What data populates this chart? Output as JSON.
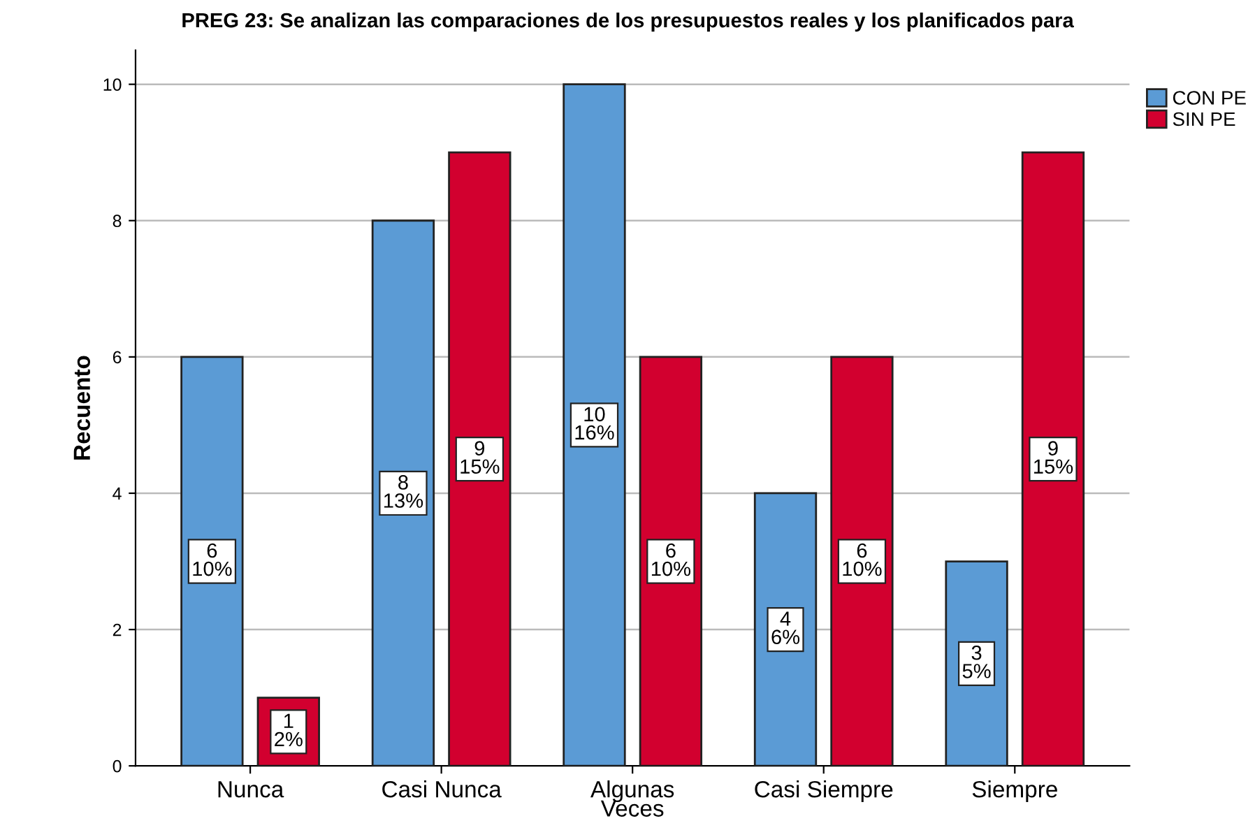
{
  "chart_data": {
    "type": "bar",
    "title": "PREG 23: Se analizan las comparaciones de los presupuestos reales y los planificados para",
    "ylabel": "Recuento",
    "categories": [
      "Nunca",
      "Casi Nunca",
      "Algunas\nVeces",
      "Casi Siempre",
      "Siempre"
    ],
    "series": [
      {
        "name": "CON PE",
        "color": "#5b9bd5",
        "values": [
          6,
          8,
          10,
          4,
          3
        ],
        "value_labels": [
          "6\n10%",
          "8\n13%",
          "10\n16%",
          "4\n6%",
          "3\n5%"
        ]
      },
      {
        "name": "SIN PE",
        "color": "#d2002f",
        "values": [
          1,
          9,
          6,
          6,
          9
        ],
        "value_labels": [
          "1\n2%",
          "9\n15%",
          "6\n10%",
          "6\n10%",
          "9\n15%"
        ]
      }
    ],
    "ylim": [
      0,
      10.5
    ],
    "yticks": [
      0,
      2,
      4,
      6,
      8,
      10
    ],
    "grid": "y",
    "legend": "top right"
  }
}
